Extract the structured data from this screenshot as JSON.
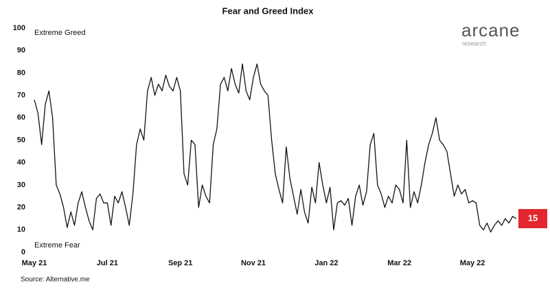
{
  "chart_data": {
    "type": "line",
    "title": "Fear and Greed Index",
    "annotations": [
      "Extreme Greed",
      "Extreme Fear"
    ],
    "source": "Source: Alternative.me",
    "categories": [
      "May 21",
      null,
      null,
      null,
      null,
      null,
      null,
      null,
      null,
      null,
      null,
      null,
      null,
      null,
      null,
      null,
      null,
      null,
      null,
      null,
      "Jul 21",
      null,
      null,
      null,
      null,
      null,
      null,
      null,
      null,
      null,
      null,
      null,
      null,
      null,
      null,
      null,
      null,
      null,
      null,
      null,
      "Sep 21",
      null,
      null,
      null,
      null,
      null,
      null,
      null,
      null,
      null,
      null,
      null,
      null,
      null,
      null,
      null,
      null,
      null,
      null,
      null,
      "Nov 21",
      null,
      null,
      null,
      null,
      null,
      null,
      null,
      null,
      null,
      null,
      null,
      null,
      null,
      null,
      null,
      null,
      null,
      null,
      null,
      "Jan 22",
      null,
      null,
      null,
      null,
      null,
      null,
      null,
      null,
      null,
      null,
      null,
      null,
      null,
      null,
      null,
      null,
      null,
      null,
      null,
      "Mar 22",
      null,
      null,
      null,
      null,
      null,
      null,
      null,
      null,
      null,
      null,
      null,
      null,
      null,
      null,
      null,
      null,
      null,
      null,
      null,
      "May 22",
      null,
      null,
      null,
      null,
      null,
      null,
      null,
      null,
      null,
      null,
      null,
      null
    ],
    "series": [
      {
        "name": "Fear and Greed Index",
        "color": "#111111",
        "values": [
          68,
          62,
          48,
          66,
          72,
          60,
          30,
          26,
          20,
          11,
          18,
          12,
          22,
          27,
          20,
          14,
          10,
          24,
          26,
          22,
          22,
          12,
          25,
          22,
          27,
          20,
          12,
          26,
          48,
          55,
          50,
          72,
          78,
          70,
          75,
          72,
          79,
          74,
          72,
          78,
          72,
          35,
          30,
          50,
          48,
          20,
          30,
          25,
          22,
          48,
          55,
          75,
          78,
          72,
          82,
          75,
          71,
          84,
          72,
          68,
          78,
          84,
          75,
          72,
          70,
          50,
          35,
          28,
          22,
          47,
          33,
          25,
          17,
          28,
          18,
          13,
          29,
          22,
          40,
          30,
          22,
          29,
          10,
          22,
          23,
          21,
          24,
          12,
          25,
          30,
          21,
          27,
          48,
          53,
          30,
          26,
          20,
          25,
          22,
          30,
          28,
          22,
          50,
          20,
          27,
          22,
          30,
          40,
          48,
          53,
          60,
          50,
          48,
          45,
          35,
          25,
          30,
          26,
          28,
          22,
          23,
          22,
          12,
          10,
          13,
          9,
          12,
          14,
          12,
          15,
          13,
          16,
          15
        ]
      }
    ],
    "ylim": [
      0,
      100
    ],
    "yticks": [
      0,
      10,
      20,
      30,
      40,
      50,
      60,
      70,
      80,
      90,
      100
    ],
    "grid": false,
    "badge_color": "#e3262f"
  },
  "logo": {
    "name": "arcane",
    "tagline": "research"
  }
}
